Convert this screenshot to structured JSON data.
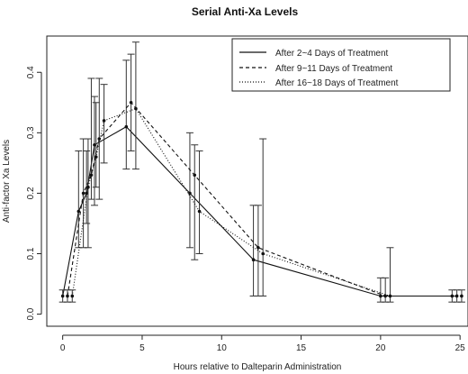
{
  "chart_data": {
    "type": "line",
    "title": "Serial Anti-Xa Levels",
    "xlabel": "Hours relative to Dalteparin Administration",
    "ylabel": "Anti-factor Xa Levels",
    "xlim": [
      -1,
      25.5
    ],
    "ylim": [
      -0.02,
      0.46
    ],
    "xticks": [
      0,
      5,
      10,
      15,
      20,
      25
    ],
    "yticks": [
      0.0,
      0.1,
      0.2,
      0.3,
      0.4
    ],
    "legend_position": "top-right",
    "series": [
      {
        "name": "After 2~4 Days of Treatment",
        "dash": "solid",
        "x": [
          0,
          1,
          1.5,
          2,
          4,
          8,
          12,
          20,
          24.5
        ],
        "y": [
          0.03,
          0.17,
          0.2,
          0.28,
          0.31,
          0.2,
          0.09,
          0.03,
          0.03
        ],
        "err_low": [
          0.02,
          0.11,
          0.15,
          0.18,
          0.24,
          0.11,
          0.03,
          0.02,
          0.02
        ],
        "err_high": [
          0.04,
          0.27,
          0.27,
          0.36,
          0.42,
          0.3,
          0.18,
          0.06,
          0.04
        ]
      },
      {
        "name": "After 9~11 Days of Treatment",
        "dash": "dashed",
        "x": [
          0.3,
          1.3,
          1.8,
          2.3,
          4.3,
          8.3,
          12.3,
          20.3,
          24.8
        ],
        "y": [
          0.03,
          0.2,
          0.23,
          0.29,
          0.35,
          0.23,
          0.11,
          0.03,
          0.03
        ],
        "err_low": [
          0.02,
          0.11,
          0.19,
          0.19,
          0.27,
          0.09,
          0.03,
          0.02,
          0.02
        ],
        "err_high": [
          0.04,
          0.29,
          0.39,
          0.39,
          0.43,
          0.28,
          0.18,
          0.06,
          0.04
        ]
      },
      {
        "name": "After 16~18 Days of Treatment",
        "dash": "dotted",
        "x": [
          0.6,
          1.6,
          2.1,
          2.6,
          4.6,
          8.6,
          12.6,
          20.6,
          25.1
        ],
        "y": [
          0.03,
          0.21,
          0.26,
          0.32,
          0.34,
          0.17,
          0.1,
          0.03,
          0.03
        ],
        "err_low": [
          0.02,
          0.11,
          0.21,
          0.25,
          0.24,
          0.1,
          0.03,
          0.02,
          0.02
        ],
        "err_high": [
          0.04,
          0.29,
          0.35,
          0.38,
          0.45,
          0.27,
          0.29,
          0.11,
          0.04
        ]
      }
    ]
  }
}
